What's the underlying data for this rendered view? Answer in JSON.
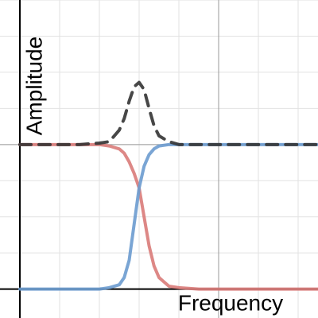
{
  "chart_data": {
    "type": "line",
    "x_label": "Frequency",
    "y_label": "Amplitude",
    "xlim": [
      -0.1,
      1.5
    ],
    "ylim": [
      -0.2,
      2.0
    ],
    "x": [
      0,
      0.1,
      0.2,
      0.3,
      0.4,
      0.45,
      0.5,
      0.525,
      0.55,
      0.575,
      0.6,
      0.625,
      0.65,
      0.675,
      0.7,
      0.75,
      0.8,
      0.9,
      1.0,
      1.2,
      1.4,
      1.5
    ],
    "series": [
      {
        "color": "#d97b79",
        "dash": false,
        "values": [
          1,
          1,
          1,
          1,
          1,
          0.99,
          0.97,
          0.94,
          0.88,
          0.8,
          0.7,
          0.5,
          0.3,
          0.16,
          0.08,
          0.02,
          0.01,
          0,
          0,
          0,
          0,
          0
        ]
      },
      {
        "color": "#6b9bcf",
        "dash": false,
        "values": [
          0,
          0,
          0,
          0,
          0,
          0.01,
          0.03,
          0.08,
          0.2,
          0.45,
          0.7,
          0.85,
          0.93,
          0.97,
          0.99,
          1,
          1,
          1,
          1,
          1,
          1,
          1
        ]
      },
      {
        "color": "#333333",
        "dash": true,
        "values": [
          1,
          1,
          1,
          1,
          1.01,
          1.02,
          1.1,
          1.18,
          1.3,
          1.4,
          1.43,
          1.38,
          1.25,
          1.13,
          1.06,
          1.02,
          1,
          1,
          1,
          1,
          1,
          1
        ]
      }
    ]
  }
}
